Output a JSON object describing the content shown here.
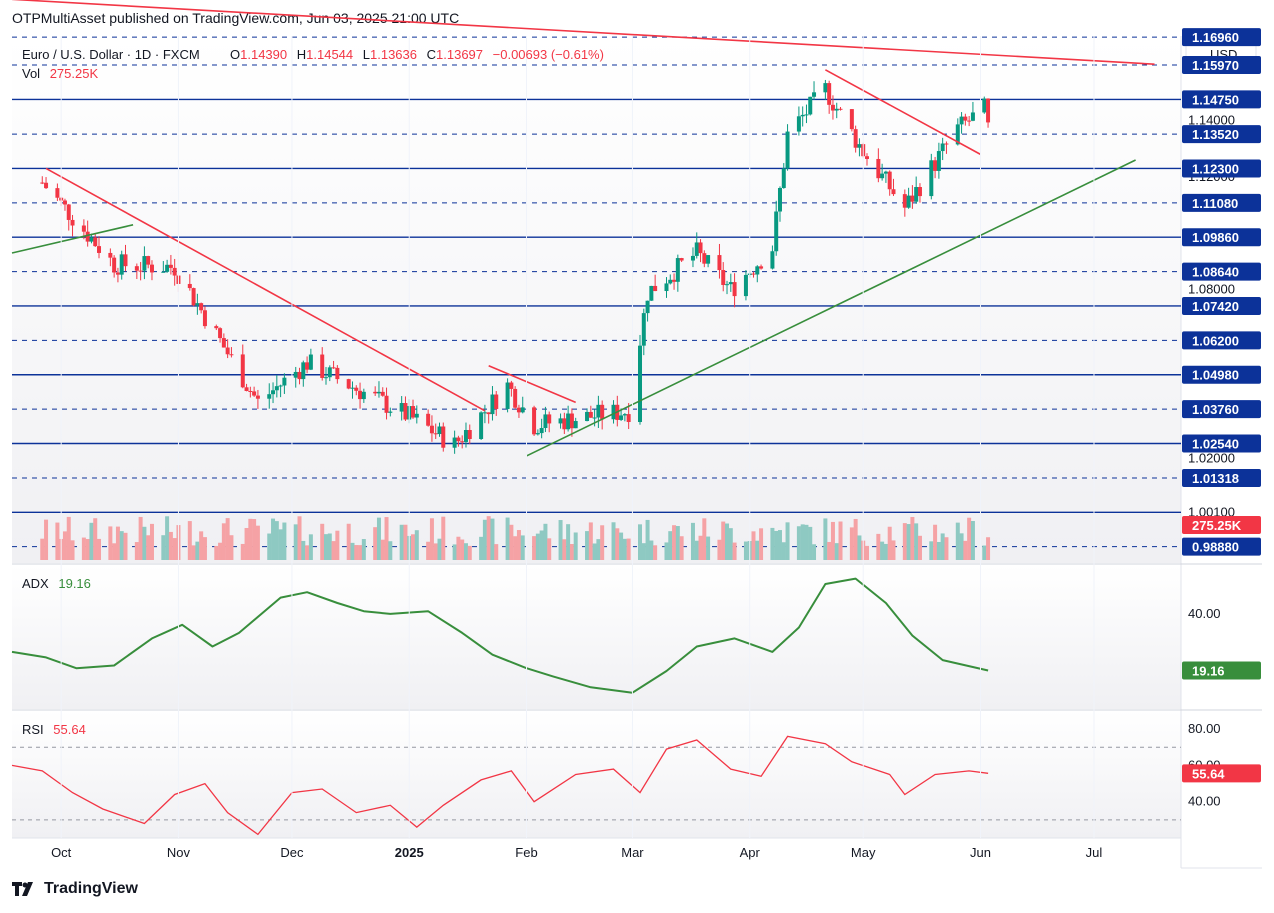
{
  "publisher": "OTPMultiAsset published on TradingView.com, Jun 03, 2025 21:00 UTC",
  "symbol_line": {
    "name": "Euro / U.S. Dollar · 1D · FXCM",
    "O_label": "O",
    "O": "1.14390",
    "H_label": "H",
    "H": "1.14544",
    "L_label": "L",
    "L": "1.13636",
    "C_label": "C",
    "C": "1.13697",
    "change": "−0.00693 (−0.61%)"
  },
  "vol_line": {
    "label": "Vol",
    "value": "275.25K"
  },
  "currency_button": "USD",
  "adx_legend": {
    "label": "ADX",
    "value": "19.16"
  },
  "rsi_legend": {
    "label": "RSI",
    "value": "55.64"
  },
  "footer": "TradingView",
  "colors": {
    "up": "#089981",
    "down": "#f23645",
    "level": "#0c3299",
    "trend_up": "#388e3c",
    "trend_down": "#f23645",
    "adx": "#388e3c",
    "rsi": "#f23645",
    "vol_up": "#8ec9c2",
    "vol_down": "#f5a2a5"
  },
  "chart_data": [
    {
      "type": "candlestick",
      "title": "Euro / U.S. Dollar · 1D · FXCM",
      "yaxis_ticks": [
        "1.14000",
        "1.12000",
        "1.08000",
        "1.02000",
        "1.00100"
      ],
      "ylim": [
        0.983,
        1.17
      ],
      "xaxis_ticks": [
        "Oct",
        "Nov",
        "Dec",
        "2025",
        "Feb",
        "Mar",
        "Apr",
        "May",
        "Jun",
        "Jul"
      ],
      "xaxis_tick_dates": [
        "2024-10-01",
        "2024-11-01",
        "2024-12-01",
        "2025-01-01",
        "2025-02-01",
        "2025-03-01",
        "2025-04-01",
        "2025-05-01",
        "2025-06-01",
        "2025-07-01"
      ],
      "xlim": [
        "2024-09-18",
        "2025-07-24"
      ],
      "horizontal_levels": [
        {
          "value": "1.16960",
          "style": "dashed"
        },
        {
          "value": "1.15970",
          "style": "dashed"
        },
        {
          "value": "1.14750",
          "style": "solid"
        },
        {
          "value": "1.13520",
          "style": "dashed"
        },
        {
          "value": "1.12300",
          "style": "solid"
        },
        {
          "value": "1.11080",
          "style": "dashed"
        },
        {
          "value": "1.09860",
          "style": "solid"
        },
        {
          "value": "1.08640",
          "style": "dashed"
        },
        {
          "value": "1.07420",
          "style": "solid"
        },
        {
          "value": "1.06200",
          "style": "dashed"
        },
        {
          "value": "1.04980",
          "style": "solid"
        },
        {
          "value": "1.03760",
          "style": "dashed"
        },
        {
          "value": "1.02540",
          "style": "solid"
        },
        {
          "value": "1.01318",
          "style": "dashed"
        },
        {
          "value": "1.00100",
          "style": "solid"
        },
        {
          "value": "0.98880",
          "style": "dashed"
        }
      ],
      "trendlines": [
        {
          "color": "down",
          "from": [
            "2024-09-18",
            1.183
          ],
          "to": [
            "2025-07-17",
            1.16
          ]
        },
        {
          "color": "down",
          "from": [
            "2024-09-27",
            1.123
          ],
          "to": [
            "2025-01-21",
            1.037
          ]
        },
        {
          "color": "down",
          "from": [
            "2025-01-22",
            1.053
          ],
          "to": [
            "2025-02-14",
            1.04
          ]
        },
        {
          "color": "down",
          "from": [
            "2025-04-21",
            1.158
          ],
          "to": [
            "2025-06-01",
            1.128
          ]
        },
        {
          "color": "up",
          "from": [
            "2024-09-18",
            1.093
          ],
          "to": [
            "2024-10-20",
            1.103
          ]
        },
        {
          "color": "up",
          "from": [
            "2025-02-01",
            1.021
          ],
          "to": [
            "2025-07-12",
            1.126
          ]
        }
      ],
      "current_price_label": "1.13697",
      "candles_summary": [
        {
          "date": "2024-09-26",
          "close": 1.118
        },
        {
          "date": "2024-10-15",
          "close": 1.089
        },
        {
          "date": "2024-10-31",
          "close": 1.088
        },
        {
          "date": "2024-11-22",
          "close": 1.04
        },
        {
          "date": "2024-12-05",
          "close": 1.054
        },
        {
          "date": "2025-01-01",
          "close": 1.035
        },
        {
          "date": "2025-01-13",
          "close": 1.025
        },
        {
          "date": "2025-01-27",
          "close": 1.046
        },
        {
          "date": "2025-02-03",
          "close": 1.032
        },
        {
          "date": "2025-02-28",
          "close": 1.037
        },
        {
          "date": "2025-03-05",
          "close": 1.079
        },
        {
          "date": "2025-03-18",
          "close": 1.093
        },
        {
          "date": "2025-03-27",
          "close": 1.08
        },
        {
          "date": "2025-04-07",
          "close": 1.095
        },
        {
          "date": "2025-04-11",
          "close": 1.135
        },
        {
          "date": "2025-04-21",
          "close": 1.151
        },
        {
          "date": "2025-05-01",
          "close": 1.129
        },
        {
          "date": "2025-05-12",
          "close": 1.109
        },
        {
          "date": "2025-05-26",
          "close": 1.137
        },
        {
          "date": "2025-06-02",
          "close": 1.144
        },
        {
          "date": "2025-06-03",
          "close": 1.137
        }
      ]
    },
    {
      "type": "bar",
      "title": "Vol",
      "series": [
        {
          "name": "Vol",
          "last": "275.25K"
        }
      ]
    },
    {
      "type": "line",
      "title": "ADX",
      "series": [
        {
          "name": "ADX",
          "last": 19.16
        }
      ],
      "yaxis_ticks": [
        "40.00"
      ],
      "points": [
        [
          "2024-09-18",
          26
        ],
        [
          "2024-09-27",
          24
        ],
        [
          "2024-10-05",
          20
        ],
        [
          "2024-10-15",
          21
        ],
        [
          "2024-10-25",
          31
        ],
        [
          "2024-11-02",
          36
        ],
        [
          "2024-11-10",
          28
        ],
        [
          "2024-11-17",
          33
        ],
        [
          "2024-11-28",
          46
        ],
        [
          "2024-12-05",
          48
        ],
        [
          "2024-12-13",
          44
        ],
        [
          "2024-12-20",
          41
        ],
        [
          "2024-12-27",
          40
        ],
        [
          "2025-01-06",
          41
        ],
        [
          "2025-01-15",
          33
        ],
        [
          "2025-01-23",
          25
        ],
        [
          "2025-02-01",
          20
        ],
        [
          "2025-02-08",
          17
        ],
        [
          "2025-02-18",
          13
        ],
        [
          "2025-03-01",
          11
        ],
        [
          "2025-03-10",
          19
        ],
        [
          "2025-03-18",
          28
        ],
        [
          "2025-03-28",
          31
        ],
        [
          "2025-04-07",
          26
        ],
        [
          "2025-04-14",
          35
        ],
        [
          "2025-04-21",
          51
        ],
        [
          "2025-04-29",
          53
        ],
        [
          "2025-05-07",
          44
        ],
        [
          "2025-05-14",
          32
        ],
        [
          "2025-05-22",
          23
        ],
        [
          "2025-06-03",
          19.16
        ]
      ]
    },
    {
      "type": "line",
      "title": "RSI",
      "series": [
        {
          "name": "RSI",
          "last": 55.64
        }
      ],
      "yaxis_ticks": [
        "80.00",
        "60.00",
        "40.00"
      ],
      "bands": [
        70,
        30
      ],
      "points": [
        [
          "2024-09-18",
          60
        ],
        [
          "2024-09-26",
          57
        ],
        [
          "2024-10-04",
          45
        ],
        [
          "2024-10-12",
          36
        ],
        [
          "2024-10-23",
          28
        ],
        [
          "2024-10-31",
          44
        ],
        [
          "2024-11-08",
          50
        ],
        [
          "2024-11-14",
          34
        ],
        [
          "2024-11-22",
          22
        ],
        [
          "2024-12-01",
          45
        ],
        [
          "2024-12-09",
          47
        ],
        [
          "2024-12-18",
          34
        ],
        [
          "2024-12-27",
          38
        ],
        [
          "2025-01-03",
          26
        ],
        [
          "2025-01-10",
          38
        ],
        [
          "2025-01-20",
          52
        ],
        [
          "2025-01-28",
          57
        ],
        [
          "2025-02-03",
          40
        ],
        [
          "2025-02-14",
          55
        ],
        [
          "2025-02-24",
          58
        ],
        [
          "2025-03-03",
          45
        ],
        [
          "2025-03-10",
          69
        ],
        [
          "2025-03-18",
          74
        ],
        [
          "2025-03-27",
          58
        ],
        [
          "2025-04-04",
          54
        ],
        [
          "2025-04-11",
          76
        ],
        [
          "2025-04-21",
          72
        ],
        [
          "2025-04-28",
          62
        ],
        [
          "2025-05-08",
          55
        ],
        [
          "2025-05-12",
          44
        ],
        [
          "2025-05-20",
          55
        ],
        [
          "2025-05-29",
          57
        ],
        [
          "2025-06-03",
          55.64
        ]
      ]
    }
  ],
  "price_axis": {
    "labels": [
      "1.15970",
      "1.14750",
      "1.13520",
      "1.12300",
      "1.11080",
      "1.09860",
      "1.08640",
      "1.07420",
      "1.06200",
      "1.04980",
      "1.03760",
      "1.02540",
      "1.01318",
      "0.98880"
    ],
    "partial_label": "1.16960",
    "vol_badge": "275.25K",
    "adx_badge": "19.16",
    "rsi_badge": "55.64"
  }
}
